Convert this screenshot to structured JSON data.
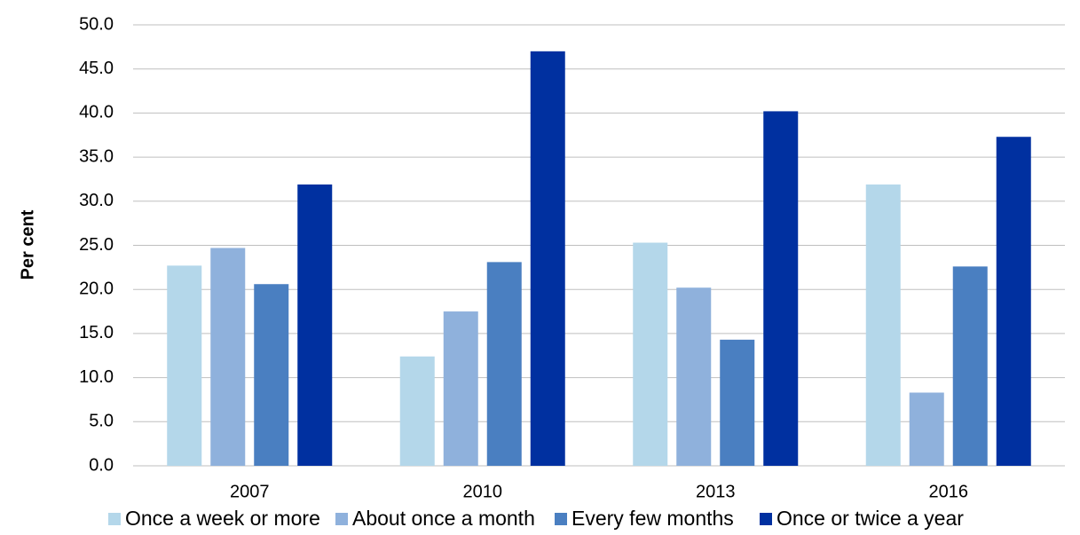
{
  "chart_data": {
    "type": "bar",
    "y_label": "Per cent",
    "categories": [
      "2007",
      "2010",
      "2013",
      "2016"
    ],
    "series": [
      {
        "name": "Once a week or more",
        "color": "#b4d7ea",
        "values": [
          22.7,
          12.4,
          25.3,
          31.9
        ]
      },
      {
        "name": "About once a month",
        "color": "#8fb1dc",
        "values": [
          24.7,
          17.5,
          20.2,
          8.3
        ]
      },
      {
        "name": "Every few months",
        "color": "#4a7fc1",
        "values": [
          20.6,
          23.1,
          14.3,
          22.6
        ]
      },
      {
        "name": "Once or twice a year",
        "color": "#0030a0",
        "values": [
          31.9,
          47.0,
          40.2,
          37.3
        ]
      }
    ],
    "ylim": [
      0,
      50
    ],
    "yticks": [
      {
        "value": 0,
        "label": "0.0"
      },
      {
        "value": 5,
        "label": "5.0"
      },
      {
        "value": 10,
        "label": "10.0"
      },
      {
        "value": 15,
        "label": "15.0"
      },
      {
        "value": 20,
        "label": "20.0"
      },
      {
        "value": 25,
        "label": "25.0"
      },
      {
        "value": 30,
        "label": "30.0"
      },
      {
        "value": 35,
        "label": "35.0"
      },
      {
        "value": 40,
        "label": "40.0"
      },
      {
        "value": 45,
        "label": "45.0"
      },
      {
        "value": 50,
        "label": "50.0"
      }
    ],
    "grid": true,
    "legend": "bottom"
  }
}
